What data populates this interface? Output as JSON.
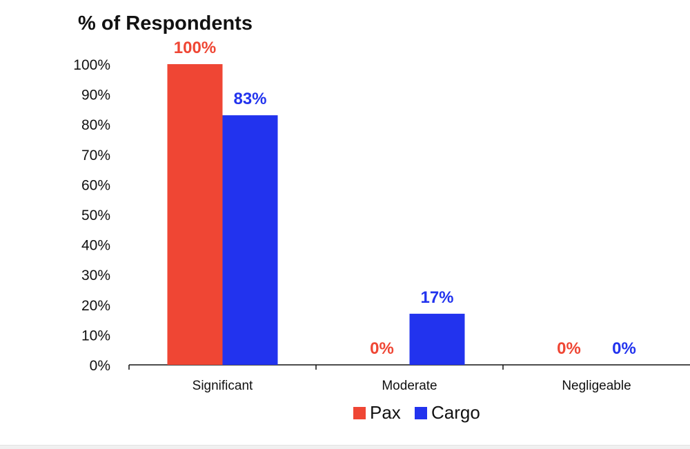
{
  "chart_data": {
    "type": "bar",
    "title": "% of Respondents",
    "categories": [
      "Significant",
      "Moderate",
      "Negligeable"
    ],
    "series": [
      {
        "name": "Pax",
        "values": [
          100,
          0,
          0
        ],
        "labels": [
          "100%",
          "0%",
          "0%"
        ],
        "color": "#ef4634"
      },
      {
        "name": "Cargo",
        "values": [
          83,
          17,
          0
        ],
        "labels": [
          "83%",
          "17%",
          "0%"
        ],
        "color": "#2233ee"
      }
    ],
    "yticks": [
      "0%",
      "10%",
      "20%",
      "30%",
      "40%",
      "50%",
      "60%",
      "70%",
      "80%",
      "90%",
      "100%"
    ],
    "ylim": [
      0,
      100
    ],
    "grid": false,
    "legend_position": "bottom"
  }
}
